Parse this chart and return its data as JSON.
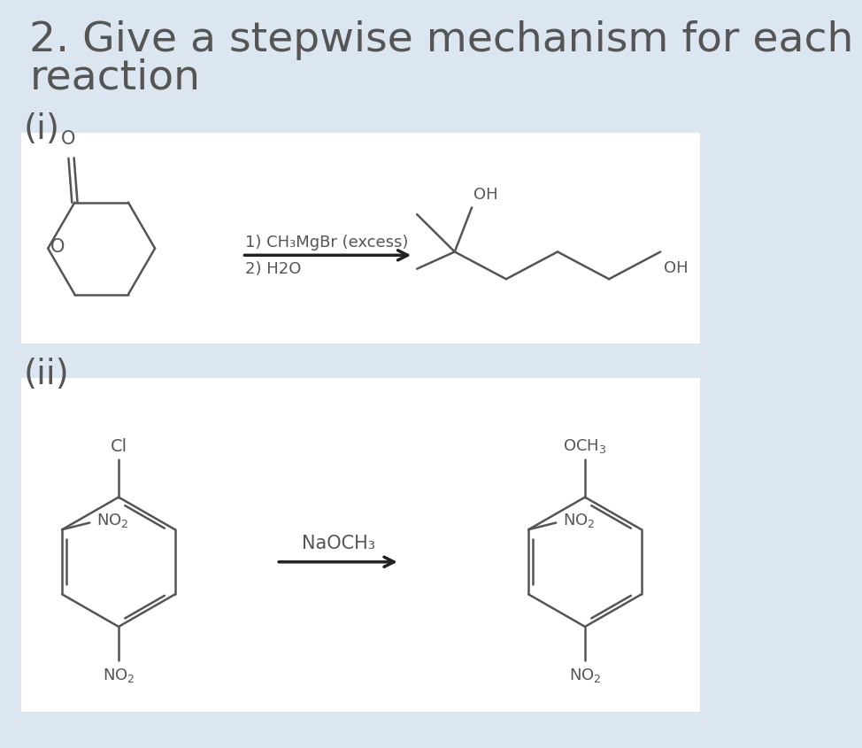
{
  "background_color": "#dce6f0",
  "title_line1": "2. Give a stepwise mechanism for each",
  "title_line2": "reaction",
  "title_fontsize": 34,
  "title_color": "#555555",
  "label_i": "(i)",
  "label_ii": "(ii)",
  "label_fontsize": 28,
  "box1_color": "#ffffff",
  "box2_color": "#ffffff",
  "reaction1_reagent1": "1) CH₃MgBr (excess)",
  "reaction1_reagent2": "2) H2O",
  "reaction2_reagent": "NaOCH₃",
  "text_color": "#555555",
  "struct_color": "#555555",
  "struct_linewidth": 1.8,
  "arrow_color": "#222222"
}
